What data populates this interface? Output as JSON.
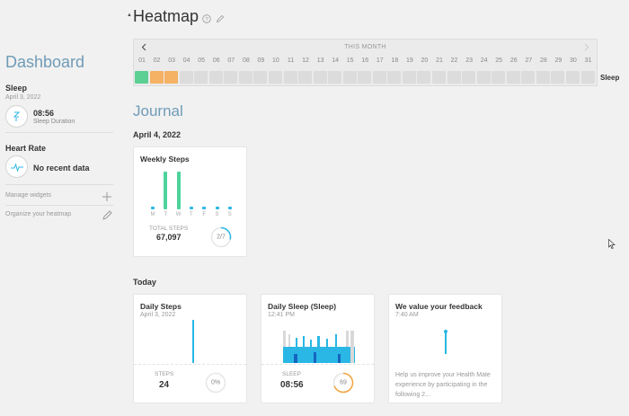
{
  "sidebar": {
    "title": "Dashboard",
    "sleep": {
      "title": "Sleep",
      "date": "April 3, 2022",
      "value": "08:56",
      "sub": "Sleep Duration",
      "icon": "sleep-icon"
    },
    "heart": {
      "title": "Heart Rate",
      "value": "No recent data",
      "icon": "heart-rate-icon"
    },
    "links": [
      {
        "label": "Manage widgets",
        "icon": "plus-icon"
      },
      {
        "label": "Organize your heatmap",
        "icon": "pencil-icon"
      }
    ]
  },
  "heatmap": {
    "title": "Heatmap",
    "range_label": "THIS MONTH",
    "row_label": "Sleep",
    "days": [
      "01",
      "02",
      "03",
      "04",
      "05",
      "06",
      "07",
      "08",
      "09",
      "10",
      "11",
      "12",
      "13",
      "14",
      "15",
      "16",
      "17",
      "18",
      "19",
      "20",
      "21",
      "22",
      "23",
      "24",
      "25",
      "26",
      "27",
      "28",
      "29",
      "30",
      "31"
    ],
    "cell_status": [
      "good",
      "fair",
      "fair",
      "none",
      "none",
      "none",
      "none",
      "none",
      "none",
      "none",
      "none",
      "none",
      "none",
      "none",
      "none",
      "none",
      "none",
      "none",
      "none",
      "none",
      "none",
      "none",
      "none",
      "none",
      "none",
      "none",
      "none",
      "none",
      "none",
      "none",
      "none"
    ],
    "colors": {
      "good": "#5ccf93",
      "fair": "#f5b164",
      "none": "#dcdcdc"
    }
  },
  "journal": {
    "title": "Journal",
    "date_head": "April 4, 2022",
    "today_head": "Today",
    "weekly_steps": {
      "title": "Weekly Steps",
      "days": [
        "M",
        "T",
        "W",
        "T",
        "F",
        "S",
        "S"
      ],
      "values": [
        0,
        1,
        1,
        0,
        0,
        0,
        0
      ],
      "total_label": "TOTAL STEPS",
      "total": "67,097",
      "goal_text": "2/7",
      "goal_fraction": 0.2857
    },
    "daily_steps": {
      "title": "Daily Steps",
      "date": "April 3, 2022",
      "label": "STEPS",
      "value": "24",
      "pct": "0%"
    },
    "daily_sleep": {
      "title": "Daily Sleep (Sleep)",
      "time": "12:41 PM",
      "label": "SLEEP",
      "value": "08:56",
      "score": "69",
      "score_fraction": 0.69
    },
    "feedback": {
      "title": "We value your feedback",
      "time": "7:40 AM",
      "body": "Help us improve your Health Mate experience by participating in the following 2..."
    }
  }
}
